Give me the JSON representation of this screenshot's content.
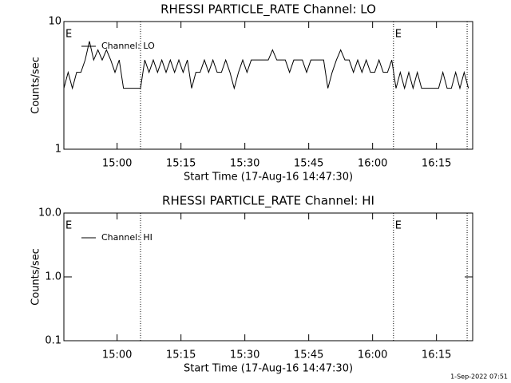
{
  "chart_data": [
    {
      "type": "line",
      "title": "RHESSI PARTICLE_RATE Channel: LO",
      "xlabel": "Start Time (17-Aug-16 14:47:30)",
      "ylabel": "Counts/sec",
      "log_y": true,
      "ylim": [
        1,
        10
      ],
      "yticks": [
        1,
        10
      ],
      "xlim": [
        "14:47:30",
        "16:23:30"
      ],
      "xticks": [
        "15:00",
        "15:15",
        "15:30",
        "15:45",
        "16:00",
        "16:15"
      ],
      "vlines": [
        "15:05:30",
        "16:04:54",
        "16:22:12"
      ],
      "annotations": [
        {
          "text": "E",
          "x": "14:47:30"
        },
        {
          "text": "E",
          "x": "16:04:54"
        }
      ],
      "x": [
        "14:47:30",
        "14:48:30",
        "14:49:30",
        "14:50:30",
        "14:51:30",
        "14:52:30",
        "14:53:30",
        "14:54:30",
        "14:55:30",
        "14:56:30",
        "14:57:30",
        "14:58:30",
        "14:59:30",
        "15:00:30",
        "15:01:30",
        "15:02:30",
        "15:03:30",
        "15:04:30",
        "15:05:30",
        "15:06:30",
        "15:07:30",
        "15:08:30",
        "15:09:30",
        "15:10:30",
        "15:11:30",
        "15:12:30",
        "15:13:30",
        "15:14:30",
        "15:15:30",
        "15:16:30",
        "15:17:30",
        "15:18:30",
        "15:19:30",
        "15:20:30",
        "15:21:30",
        "15:22:30",
        "15:23:30",
        "15:24:30",
        "15:25:30",
        "15:26:30",
        "15:27:30",
        "15:28:30",
        "15:29:30",
        "15:30:30",
        "15:31:30",
        "15:32:30",
        "15:33:30",
        "15:34:30",
        "15:35:30",
        "15:36:30",
        "15:37:30",
        "15:38:30",
        "15:39:30",
        "15:40:30",
        "15:41:30",
        "15:42:30",
        "15:43:30",
        "15:44:30",
        "15:45:30",
        "15:46:30",
        "15:47:30",
        "15:48:30",
        "15:49:30",
        "15:50:30",
        "15:51:30",
        "15:52:30",
        "15:53:30",
        "15:54:30",
        "15:55:30",
        "15:56:30",
        "15:57:30",
        "15:58:30",
        "15:59:30",
        "16:00:30",
        "16:01:30",
        "16:02:30",
        "16:03:30",
        "16:04:30",
        "16:05:30",
        "16:06:30",
        "16:07:30",
        "16:08:30",
        "16:09:30",
        "16:10:30",
        "16:11:30",
        "16:12:30",
        "16:13:30",
        "16:14:30",
        "16:15:30",
        "16:16:30",
        "16:17:30",
        "16:18:30",
        "16:19:30",
        "16:20:30",
        "16:21:30",
        "16:22:30"
      ],
      "series": [
        {
          "name": "Channel: LO",
          "color": "#000000",
          "values": [
            3,
            4,
            3,
            4,
            4,
            5,
            7,
            5,
            6,
            5,
            6,
            5,
            4,
            5,
            3,
            3,
            3,
            3,
            3,
            5,
            4,
            5,
            4,
            5,
            4,
            5,
            4,
            5,
            4,
            5,
            3,
            4,
            4,
            5,
            4,
            5,
            4,
            4,
            5,
            4,
            3,
            4,
            5,
            4,
            5,
            5,
            5,
            5,
            5,
            6,
            5,
            5,
            5,
            4,
            5,
            5,
            5,
            4,
            5,
            5,
            5,
            5,
            3,
            4,
            5,
            6,
            5,
            5,
            4,
            5,
            4,
            5,
            4,
            4,
            5,
            4,
            4,
            5,
            3,
            4,
            3,
            4,
            3,
            4,
            3,
            3,
            3,
            3,
            3,
            4,
            3,
            3,
            4,
            3,
            4,
            3
          ]
        }
      ]
    },
    {
      "type": "line",
      "title": "RHESSI PARTICLE_RATE Channel: HI",
      "xlabel": "Start Time (17-Aug-16 14:47:30)",
      "ylabel": "Counts/sec",
      "log_y": true,
      "ylim": [
        0.1,
        10
      ],
      "yticks": [
        {
          "value": 0.1,
          "label": "0.1"
        },
        {
          "value": 1,
          "label": "1.0"
        },
        {
          "value": 10,
          "label": "10.0"
        }
      ],
      "xlim": [
        "14:47:30",
        "16:23:30"
      ],
      "xticks": [
        "15:00",
        "15:15",
        "15:30",
        "15:45",
        "16:00",
        "16:15"
      ],
      "vlines": [
        "15:05:30",
        "16:04:54",
        "16:22:12"
      ],
      "annotations": [
        {
          "text": "E",
          "x": "14:47:30"
        },
        {
          "text": "E",
          "x": "16:04:54"
        }
      ],
      "x": [],
      "series": [
        {
          "name": "Channel: HI",
          "color": "#000000",
          "values": []
        }
      ],
      "footer": "1-Sep-2022 07:51"
    }
  ]
}
